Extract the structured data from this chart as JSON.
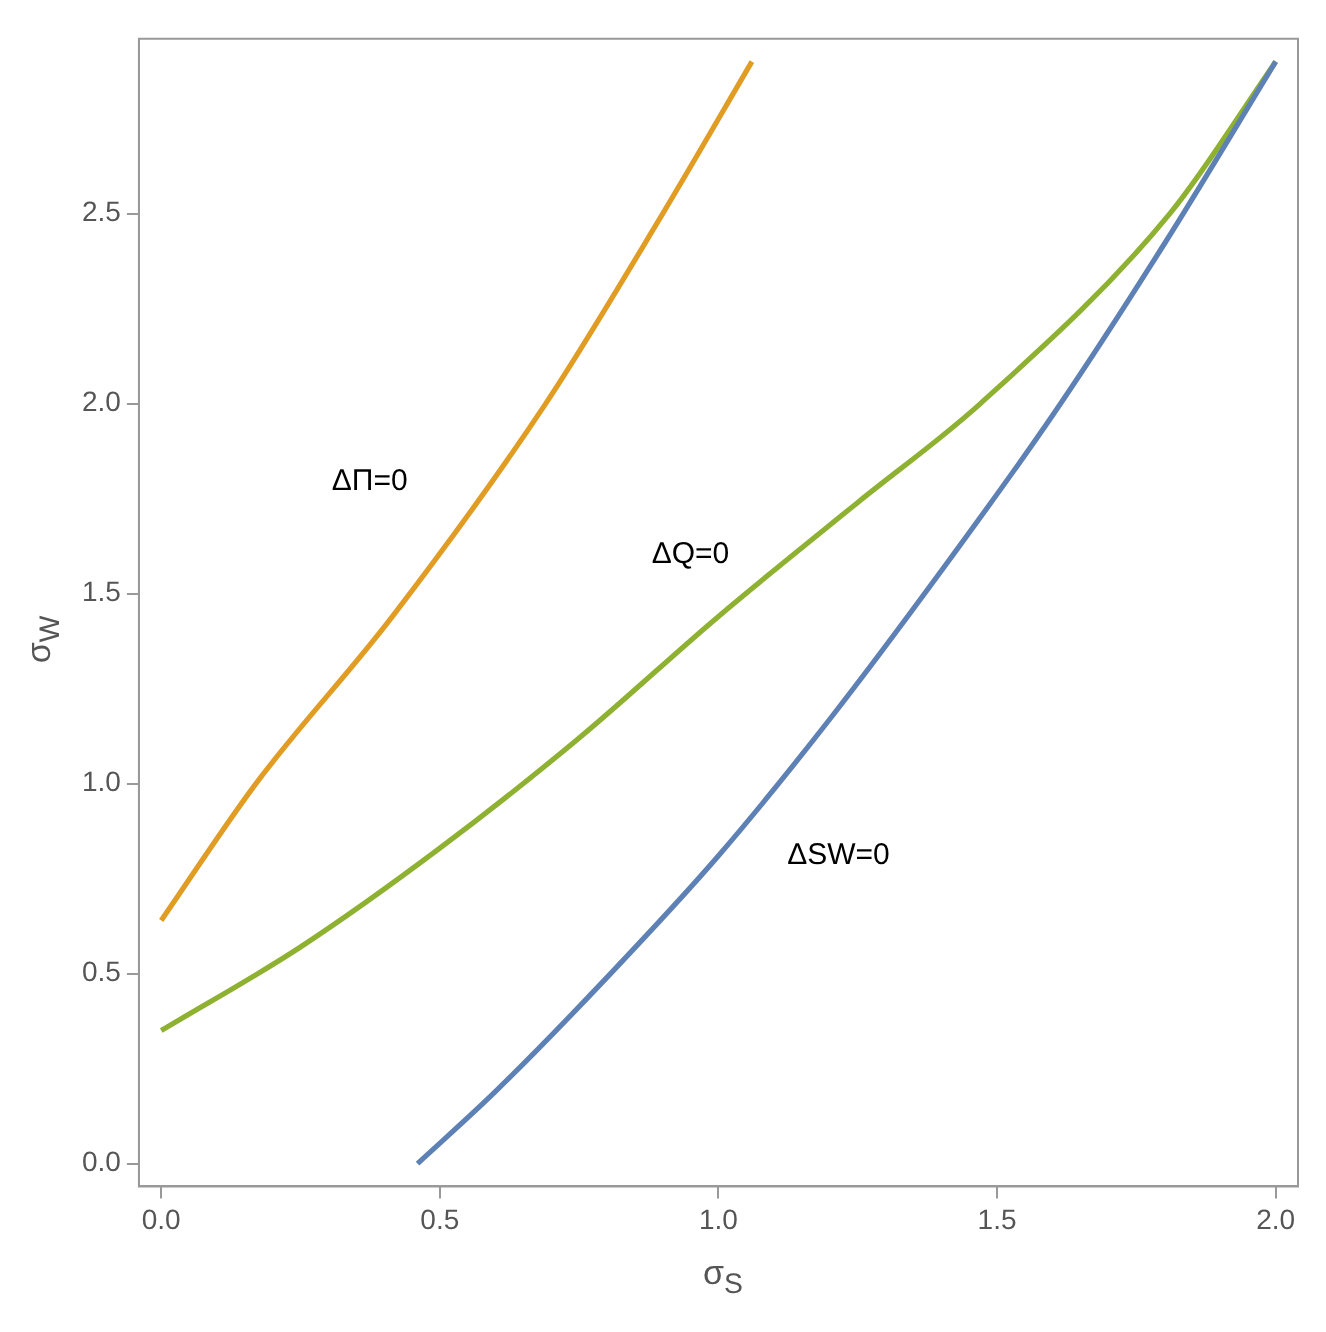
{
  "chart_data": {
    "type": "line",
    "xlabel": "σ$_{S}$",
    "ylabel": "σ$_{W}$",
    "xlim": [
      -0.04,
      2.04
    ],
    "ylim": [
      -0.06,
      2.96
    ],
    "xticks": [
      {
        "value": 0,
        "label": "0.0"
      },
      0.5,
      {
        "value": 1,
        "label": "1.0"
      },
      1.5,
      {
        "value": 2,
        "label": "2.0"
      }
    ],
    "yticks": [
      {
        "value": 0,
        "label": "0.0"
      },
      0.5,
      {
        "value": 1,
        "label": "1.0"
      },
      1.5,
      {
        "value": 2,
        "label": "2.0"
      },
      2.5
    ],
    "grid": false,
    "legend": false,
    "marker": "none",
    "line_style": "solid",
    "series": [
      {
        "name": "ΔSW=0",
        "color": "#5e81b5",
        "x": [
          0.46,
          0.6,
          0.8,
          1.0,
          1.2,
          1.4,
          1.6,
          1.8,
          2.0
        ],
        "values": [
          0,
          0.19,
          0.49,
          0.81,
          1.17,
          1.56,
          1.97,
          2.42,
          2.9
        ]
      },
      {
        "name": "ΔΠ=0",
        "color": "#e19c24",
        "x": [
          0,
          0.17,
          0.415,
          0.69,
          0.9,
          1.06
        ],
        "values": [
          0.64,
          1.0,
          1.44,
          2.0,
          2.5,
          2.9
        ]
      },
      {
        "name": "ΔQ=0",
        "color": "#8fb131",
        "x": [
          0,
          0.25,
          0.5,
          0.75,
          1.0,
          1.25,
          1.47,
          1.81,
          2.0
        ],
        "values": [
          0.35,
          0.57,
          0.83,
          1.12,
          1.44,
          1.74,
          2.0,
          2.5,
          2.9
        ]
      }
    ]
  }
}
